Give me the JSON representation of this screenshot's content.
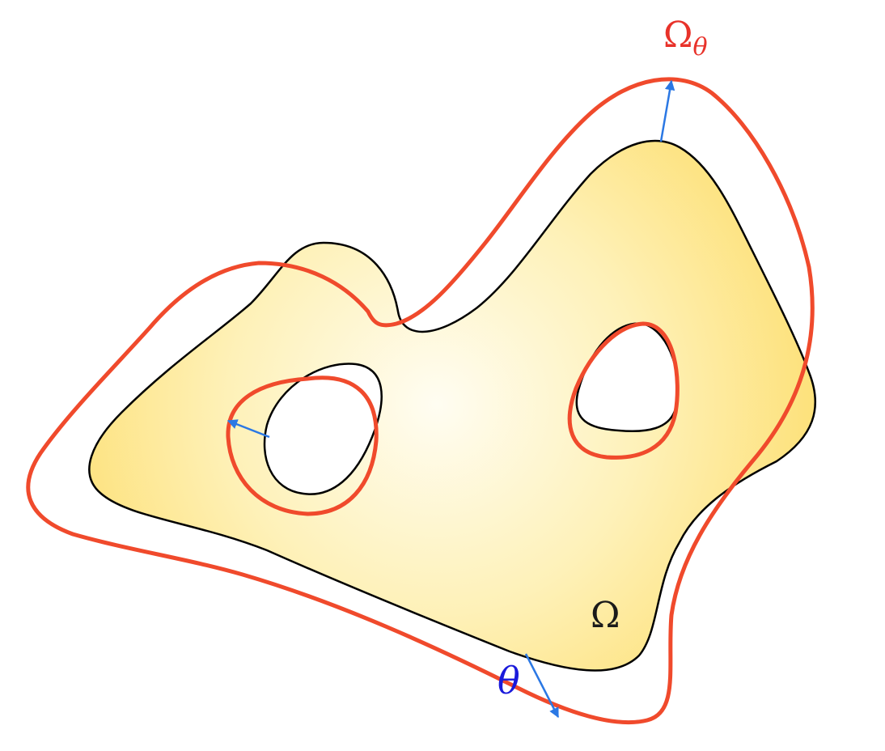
{
  "labels": {
    "domain": "Ω",
    "deformed_domain_base": "Ω",
    "deformed_domain_subscript": "θ",
    "displacement": "θ"
  },
  "colors": {
    "domain_fill_center": "#fffdf2",
    "domain_fill_edge": "#fde68a",
    "domain_outline": "#000000",
    "deformed_outline": "#f04a2c",
    "vector_field": "#2b78e4",
    "displacement_label": "#1a1adb",
    "deformed_label": "#e8322a",
    "domain_label": "#1a1a1a"
  },
  "vectors": [
    {
      "name": "top-boundary-vector"
    },
    {
      "name": "left-hole-vector"
    },
    {
      "name": "bottom-boundary-vector"
    }
  ]
}
